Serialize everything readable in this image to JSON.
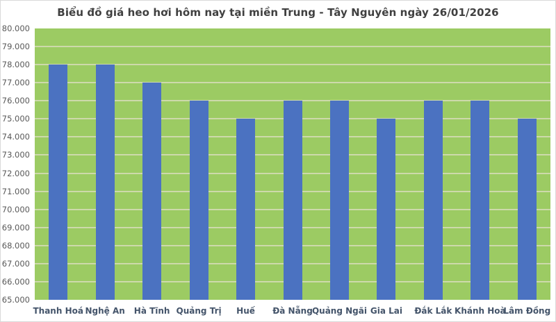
{
  "chart_data": {
    "type": "bar",
    "title": "Biểu đồ giá heo hơi hôm nay tại miền Trung - Tây Nguyên ngày 26/01/2026",
    "categories": [
      "Thanh Hoá",
      "Nghệ An",
      "Hà Tĩnh",
      "Quảng Trị",
      "Huế",
      "Đà Nẵng",
      "Quảng Ngãi",
      "Gia Lai",
      "Đắk Lắk",
      "Khánh Hoà",
      "Lâm Đồng"
    ],
    "values": [
      78000,
      78000,
      77000,
      76000,
      75000,
      76000,
      76000,
      75000,
      76000,
      76000,
      75000
    ],
    "xlabel": "",
    "ylabel": "",
    "ylim": [
      65000,
      80000
    ],
    "y_tick_step": 1000,
    "y_tick_labels": [
      "80.000",
      "79.000",
      "78.000",
      "77.000",
      "76.000",
      "75.000",
      "74.000",
      "73.000",
      "72.000",
      "71.000",
      "70.000",
      "69.000",
      "68.000",
      "67.000",
      "66.000",
      "65.000"
    ],
    "grid": true,
    "legend": false,
    "colors": {
      "bar": "#4b72c1",
      "plot_background": "#9ccb63",
      "gridline": "#cdd9ab",
      "title_text": "#404040",
      "x_label_text": "#44546a",
      "y_label_text": "#595959"
    }
  }
}
